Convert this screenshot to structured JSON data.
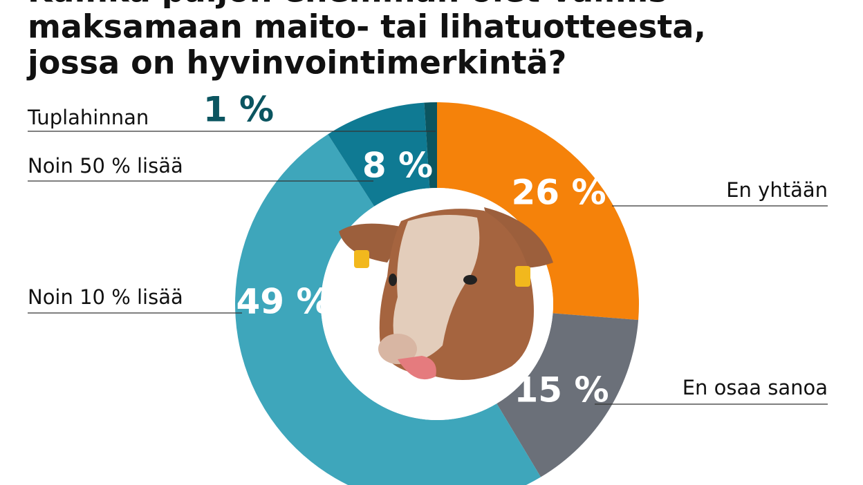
{
  "chart_data": {
    "type": "donut",
    "title": [
      "Kuinka paljon enemmän olet valmis",
      "maksamaan maito- tai lihatuotteesta,",
      "jossa on hyvinvointimerkintä?"
    ],
    "categories": [
      "En yhtään",
      "En osaa sanoa",
      "Noin 10 % lisää",
      "Noin 50 % lisää",
      "Tuplahinnan"
    ],
    "values": [
      26,
      15,
      49,
      8,
      1
    ],
    "value_labels": [
      "26 %",
      "15 %",
      "49 %",
      "8 %",
      "1 %"
    ],
    "colors": [
      "#f5820a",
      "#6b7079",
      "#3ea6bb",
      "#0f7a93",
      "#0b5560"
    ]
  }
}
